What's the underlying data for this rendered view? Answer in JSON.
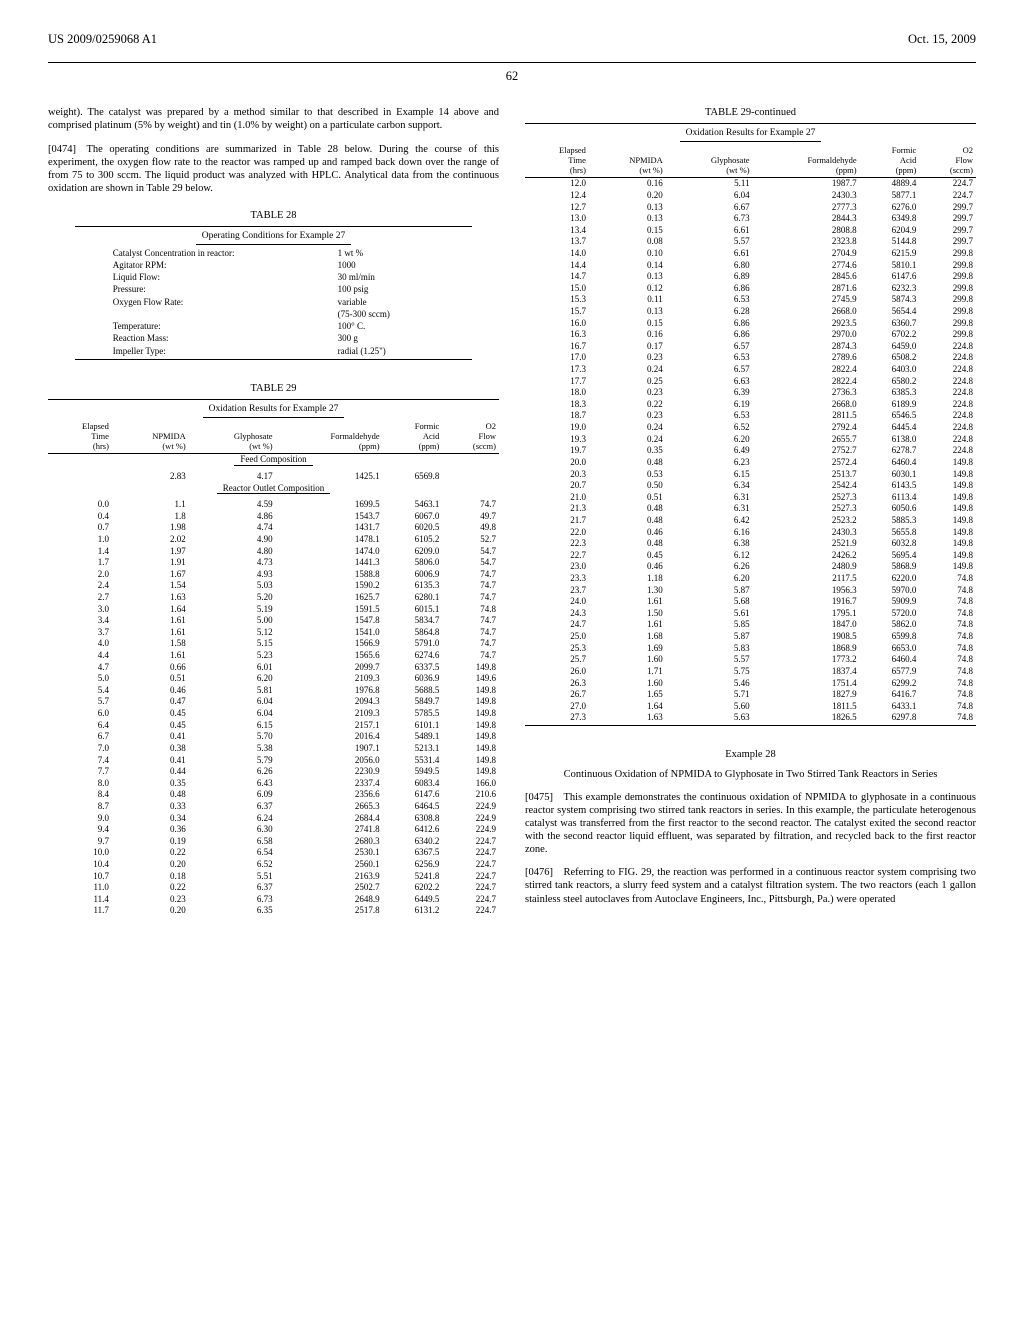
{
  "header": {
    "doc_number": "US 2009/0259068 A1",
    "date": "Oct. 15, 2009",
    "page": "62"
  },
  "left": {
    "intro": "weight). The catalyst was prepared by a method similar to that described in Example 14 above and comprised platinum (5% by weight) and tin (1.0% by weight) on a particulate carbon support.",
    "p0474": "[0474] The operating conditions are summarized in Table 28 below. During the course of this experiment, the oxygen flow rate to the reactor was ramped up and ramped back down over the range of from 75 to 300 sccm. The liquid product was analyzed with HPLC. Analytical data from the continuous oxidation are shown in Table 29 below.",
    "t28_title": "TABLE 28",
    "t28_sub": "Operating Conditions for Example 27",
    "t28": [
      [
        "Catalyst Concentration in reactor:",
        "1 wt %"
      ],
      [
        "Agitator RPM:",
        "1000"
      ],
      [
        "Liquid Flow:",
        "30 ml/min"
      ],
      [
        "Pressure:",
        "100 psig"
      ],
      [
        "Oxygen Flow Rate:",
        "variable"
      ],
      [
        "",
        "(75-300 sccm)"
      ],
      [
        "Temperature:",
        "100° C."
      ],
      [
        "Reaction Mass:",
        "300 g"
      ],
      [
        "Impeller Type:",
        "radial (1.25\")"
      ]
    ],
    "t29_title": "TABLE 29",
    "t29_sub": "Oxidation Results for Example 27",
    "t29_headers": [
      "Elapsed<br>Time<br>(hrs)",
      "NPMIDA<br>(wt %)",
      "Glyphosate<br>(wt %)",
      "Formaldehyde<br>(ppm)",
      "Formic<br>Acid<br>(ppm)",
      "O2<br>Flow<br>(sccm)"
    ],
    "feed_label": "Feed Composition",
    "feed_row": [
      "",
      "2.83",
      "4.17",
      "1425.1",
      "6569.8",
      ""
    ],
    "reactor_label": "Reactor Outlet Composition",
    "t29_rows": [
      [
        "0.0",
        "1.1",
        "4.59",
        "1699.5",
        "5463.1",
        "74.7"
      ],
      [
        "0.4",
        "1.8",
        "4.86",
        "1543.7",
        "6067.0",
        "49.7"
      ],
      [
        "0.7",
        "1.98",
        "4.74",
        "1431.7",
        "6020.5",
        "49.8"
      ],
      [
        "1.0",
        "2.02",
        "4.90",
        "1478.1",
        "6105.2",
        "52.7"
      ],
      [
        "1.4",
        "1.97",
        "4.80",
        "1474.0",
        "6209.0",
        "54.7"
      ],
      [
        "1.7",
        "1.91",
        "4.73",
        "1441.3",
        "5806.0",
        "54.7"
      ],
      [
        "2.0",
        "1.67",
        "4.93",
        "1588.8",
        "6006.9",
        "74.7"
      ],
      [
        "2.4",
        "1.54",
        "5.03",
        "1590.2",
        "6135.3",
        "74.7"
      ],
      [
        "2.7",
        "1.63",
        "5.20",
        "1625.7",
        "6280.1",
        "74.7"
      ],
      [
        "3.0",
        "1.64",
        "5.19",
        "1591.5",
        "6015.1",
        "74.8"
      ],
      [
        "3.4",
        "1.61",
        "5.00",
        "1547.8",
        "5834.7",
        "74.7"
      ],
      [
        "3.7",
        "1.61",
        "5.12",
        "1541.0",
        "5864.8",
        "74.7"
      ],
      [
        "4.0",
        "1.58",
        "5.15",
        "1566.9",
        "5791.0",
        "74.7"
      ],
      [
        "4.4",
        "1.61",
        "5.23",
        "1565.6",
        "6274.6",
        "74.7"
      ],
      [
        "4.7",
        "0.66",
        "6.01",
        "2099.7",
        "6337.5",
        "149.8"
      ],
      [
        "5.0",
        "0.51",
        "6.20",
        "2109.3",
        "6036.9",
        "149.6"
      ],
      [
        "5.4",
        "0.46",
        "5.81",
        "1976.8",
        "5688.5",
        "149.8"
      ],
      [
        "5.7",
        "0.47",
        "6.04",
        "2094.3",
        "5849.7",
        "149.8"
      ],
      [
        "6.0",
        "0.45",
        "6.04",
        "2109.3",
        "5785.5",
        "149.8"
      ],
      [
        "6.4",
        "0.45",
        "6.15",
        "2157.1",
        "6101.1",
        "149.8"
      ],
      [
        "6.7",
        "0.41",
        "5.70",
        "2016.4",
        "5489.1",
        "149.8"
      ],
      [
        "7.0",
        "0.38",
        "5.38",
        "1907.1",
        "5213.1",
        "149.8"
      ],
      [
        "7.4",
        "0.41",
        "5.79",
        "2056.0",
        "5531.4",
        "149.8"
      ],
      [
        "7.7",
        "0.44",
        "6.26",
        "2230.9",
        "5949.5",
        "149.8"
      ],
      [
        "8.0",
        "0.35",
        "6.43",
        "2337.4",
        "6083.4",
        "166.0"
      ],
      [
        "8.4",
        "0.48",
        "6.09",
        "2356.6",
        "6147.6",
        "210.6"
      ],
      [
        "8.7",
        "0.33",
        "6.37",
        "2665.3",
        "6464.5",
        "224.9"
      ],
      [
        "9.0",
        "0.34",
        "6.24",
        "2684.4",
        "6308.8",
        "224.9"
      ],
      [
        "9.4",
        "0.36",
        "6.30",
        "2741.8",
        "6412.6",
        "224.9"
      ],
      [
        "9.7",
        "0.19",
        "6.58",
        "2680.3",
        "6340.2",
        "224.7"
      ],
      [
        "10.0",
        "0.22",
        "6.54",
        "2530.1",
        "6367.5",
        "224.7"
      ],
      [
        "10.4",
        "0.20",
        "6.52",
        "2560.1",
        "6256.9",
        "224.7"
      ],
      [
        "10.7",
        "0.18",
        "5.51",
        "2163.9",
        "5241.8",
        "224.7"
      ],
      [
        "11.0",
        "0.22",
        "6.37",
        "2502.7",
        "6202.2",
        "224.7"
      ],
      [
        "11.4",
        "0.23",
        "6.73",
        "2648.9",
        "6449.5",
        "224.7"
      ],
      [
        "11.7",
        "0.20",
        "6.35",
        "2517.8",
        "6131.2",
        "224.7"
      ]
    ]
  },
  "right": {
    "t29c_title": "TABLE 29-continued",
    "t29_rows": [
      [
        "12.0",
        "0.16",
        "5.11",
        "1987.7",
        "4889.4",
        "224.7"
      ],
      [
        "12.4",
        "0.20",
        "6.04",
        "2430.3",
        "5877.1",
        "224.7"
      ],
      [
        "12.7",
        "0.13",
        "6.67",
        "2777.3",
        "6276.0",
        "299.7"
      ],
      [
        "13.0",
        "0.13",
        "6.73",
        "2844.3",
        "6349.8",
        "299.7"
      ],
      [
        "13.4",
        "0.15",
        "6.61",
        "2808.8",
        "6204.9",
        "299.7"
      ],
      [
        "13.7",
        "0.08",
        "5.57",
        "2323.8",
        "5144.8",
        "299.7"
      ],
      [
        "14.0",
        "0.10",
        "6.61",
        "2704.9",
        "6215.9",
        "299.8"
      ],
      [
        "14.4",
        "0.14",
        "6.80",
        "2774.6",
        "5810.1",
        "299.8"
      ],
      [
        "14.7",
        "0.13",
        "6.89",
        "2845.6",
        "6147.6",
        "299.8"
      ],
      [
        "15.0",
        "0.12",
        "6.86",
        "2871.6",
        "6232.3",
        "299.8"
      ],
      [
        "15.3",
        "0.11",
        "6.53",
        "2745.9",
        "5874.3",
        "299.8"
      ],
      [
        "15.7",
        "0.13",
        "6.28",
        "2668.0",
        "5654.4",
        "299.8"
      ],
      [
        "16.0",
        "0.15",
        "6.86",
        "2923.5",
        "6360.7",
        "299.8"
      ],
      [
        "16.3",
        "0.16",
        "6.86",
        "2970.0",
        "6702.2",
        "299.8"
      ],
      [
        "16.7",
        "0.17",
        "6.57",
        "2874.3",
        "6459.0",
        "224.8"
      ],
      [
        "17.0",
        "0.23",
        "6.53",
        "2789.6",
        "6508.2",
        "224.8"
      ],
      [
        "17.3",
        "0.24",
        "6.57",
        "2822.4",
        "6403.0",
        "224.8"
      ],
      [
        "17.7",
        "0.25",
        "6.63",
        "2822.4",
        "6580.2",
        "224.8"
      ],
      [
        "18.0",
        "0.23",
        "6.39",
        "2736.3",
        "6385.3",
        "224.8"
      ],
      [
        "18.3",
        "0.22",
        "6.19",
        "2668.0",
        "6189.9",
        "224.8"
      ],
      [
        "18.7",
        "0.23",
        "6.53",
        "2811.5",
        "6546.5",
        "224.8"
      ],
      [
        "19.0",
        "0.24",
        "6.52",
        "2792.4",
        "6445.4",
        "224.8"
      ],
      [
        "19.3",
        "0.24",
        "6.20",
        "2655.7",
        "6138.0",
        "224.8"
      ],
      [
        "19.7",
        "0.35",
        "6.49",
        "2752.7",
        "6278.7",
        "224.8"
      ],
      [
        "20.0",
        "0.48",
        "6.23",
        "2572.4",
        "6460.4",
        "149.8"
      ],
      [
        "20.3",
        "0.53",
        "6.15",
        "2513.7",
        "6030.1",
        "149.8"
      ],
      [
        "20.7",
        "0.50",
        "6.34",
        "2542.4",
        "6143.5",
        "149.8"
      ],
      [
        "21.0",
        "0.51",
        "6.31",
        "2527.3",
        "6113.4",
        "149.8"
      ],
      [
        "21.3",
        "0.48",
        "6.31",
        "2527.3",
        "6050.6",
        "149.8"
      ],
      [
        "21.7",
        "0.48",
        "6.42",
        "2523.2",
        "5885.3",
        "149.8"
      ],
      [
        "22.0",
        "0.46",
        "6.16",
        "2430.3",
        "5655.8",
        "149.8"
      ],
      [
        "22.3",
        "0.48",
        "6.38",
        "2521.9",
        "6032.8",
        "149.8"
      ],
      [
        "22.7",
        "0.45",
        "6.12",
        "2426.2",
        "5695.4",
        "149.8"
      ],
      [
        "23.0",
        "0.46",
        "6.26",
        "2480.9",
        "5868.9",
        "149.8"
      ],
      [
        "23.3",
        "1.18",
        "6.20",
        "2117.5",
        "6220.0",
        "74.8"
      ],
      [
        "23.7",
        "1.30",
        "5.87",
        "1956.3",
        "5970.0",
        "74.8"
      ],
      [
        "24.0",
        "1.61",
        "5.68",
        "1916.7",
        "5909.9",
        "74.8"
      ],
      [
        "24.3",
        "1.50",
        "5.61",
        "1795.1",
        "5720.0",
        "74.8"
      ],
      [
        "24.7",
        "1.61",
        "5.85",
        "1847.0",
        "5862.0",
        "74.8"
      ],
      [
        "25.0",
        "1.68",
        "5.87",
        "1908.5",
        "6599.8",
        "74.8"
      ],
      [
        "25.3",
        "1.69",
        "5.83",
        "1868.9",
        "6653.0",
        "74.8"
      ],
      [
        "25.7",
        "1.60",
        "5.57",
        "1773.2",
        "6460.4",
        "74.8"
      ],
      [
        "26.0",
        "1.71",
        "5.75",
        "1837.4",
        "6577.9",
        "74.8"
      ],
      [
        "26.3",
        "1.60",
        "5.46",
        "1751.4",
        "6299.2",
        "74.8"
      ],
      [
        "26.7",
        "1.65",
        "5.71",
        "1827.9",
        "6416.7",
        "74.8"
      ],
      [
        "27.0",
        "1.64",
        "5.60",
        "1811.5",
        "6433.1",
        "74.8"
      ],
      [
        "27.3",
        "1.63",
        "5.63",
        "1826.5",
        "6297.8",
        "74.8"
      ]
    ],
    "ex28_title": "Example 28",
    "ex28_sub": "Continuous Oxidation of NPMIDA to Glyphosate in Two Stirred Tank Reactors in Series",
    "p0475": "[0475] This example demonstrates the continuous oxidation of NPMIDA to glyphosate in a continuous reactor system comprising two stirred tank reactors in series. In this example, the particulate heterogenous catalyst was transferred from the first reactor to the second reactor. The catalyst exited the second reactor with the second reactor liquid effluent, was separated by filtration, and recycled back to the first reactor zone.",
    "p0476": "[0476] Referring to FIG. 29, the reaction was performed in a continuous reactor system comprising two stirred tank reactors, a slurry feed system and a catalyst filtration system. The two reactors (each 1 gallon stainless steel autoclaves from Autoclave Engineers, Inc., Pittsburgh, Pa.) were operated"
  }
}
